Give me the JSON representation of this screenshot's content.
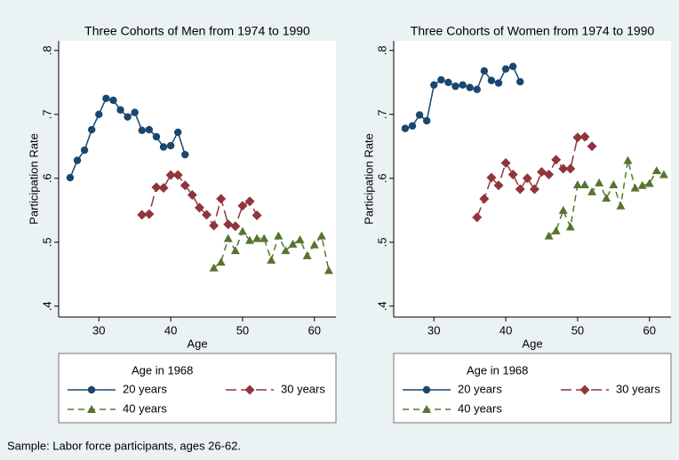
{
  "chart_data": [
    {
      "type": "line",
      "title": "Three Cohorts of Men from 1974 to 1990",
      "x_label": "Age",
      "y_label": "Participation Rate",
      "legend_title": "Age in 1968",
      "xlim": [
        24.4,
        63.0
      ],
      "xticks": [
        30,
        40,
        50,
        60
      ],
      "ylim": [
        0.383,
        0.815
      ],
      "yticks": [
        {
          "value": 0.4,
          "label": ".4"
        },
        {
          "value": 0.5,
          "label": ".5"
        },
        {
          "value": 0.6,
          "label": ".6"
        },
        {
          "value": 0.7,
          "label": ".7"
        },
        {
          "value": 0.8,
          "label": ".8"
        }
      ],
      "grid": false,
      "series": [
        {
          "name": "20 years",
          "color": "#1a476f",
          "marker": "circle",
          "dash": "solid",
          "x": [
            26,
            27,
            28,
            29,
            30,
            31,
            32,
            33,
            34,
            35,
            36,
            37,
            38,
            39,
            40,
            41,
            42
          ],
          "values": [
            0.601,
            0.628,
            0.644,
            0.676,
            0.7,
            0.725,
            0.722,
            0.707,
            0.696,
            0.703,
            0.675,
            0.676,
            0.665,
            0.649,
            0.651,
            0.672,
            0.637
          ]
        },
        {
          "name": "30 years",
          "color": "#90353b",
          "marker": "diamond",
          "dash": "long",
          "x": [
            36,
            37,
            38,
            39,
            40,
            41,
            42,
            43,
            44,
            45,
            46,
            47,
            48,
            49,
            50,
            51,
            52
          ],
          "values": [
            0.543,
            0.544,
            0.586,
            0.585,
            0.605,
            0.605,
            0.589,
            0.574,
            0.554,
            0.543,
            0.526,
            0.568,
            0.528,
            0.525,
            0.557,
            0.564,
            0.542
          ]
        },
        {
          "name": "40 years",
          "color": "#55752f",
          "marker": "triangle",
          "dash": "medium",
          "x": [
            46,
            47,
            48,
            49,
            50,
            51,
            52,
            53,
            54,
            55,
            56,
            57,
            58,
            59,
            60,
            61,
            62
          ],
          "values": [
            0.46,
            0.469,
            0.506,
            0.487,
            0.517,
            0.503,
            0.506,
            0.506,
            0.472,
            0.51,
            0.487,
            0.497,
            0.504,
            0.479,
            0.496,
            0.51,
            0.456
          ]
        }
      ]
    },
    {
      "type": "line",
      "title": "Three Cohorts of Women from 1974 to 1990",
      "x_label": "Age",
      "y_label": "Participation Rate",
      "legend_title": "Age in 1968",
      "xlim": [
        24.4,
        63.0
      ],
      "xticks": [
        30,
        40,
        50,
        60
      ],
      "ylim": [
        0.383,
        0.815
      ],
      "yticks": [
        {
          "value": 0.4,
          "label": ".4"
        },
        {
          "value": 0.5,
          "label": ".5"
        },
        {
          "value": 0.6,
          "label": ".6"
        },
        {
          "value": 0.7,
          "label": ".7"
        },
        {
          "value": 0.8,
          "label": ".8"
        }
      ],
      "grid": false,
      "series": [
        {
          "name": "20 years",
          "color": "#1a476f",
          "marker": "circle",
          "dash": "solid",
          "x": [
            26,
            27,
            28,
            29,
            30,
            31,
            32,
            33,
            34,
            35,
            36,
            37,
            38,
            39,
            40,
            41,
            42
          ],
          "values": [
            0.678,
            0.682,
            0.699,
            0.69,
            0.746,
            0.754,
            0.75,
            0.744,
            0.746,
            0.742,
            0.739,
            0.768,
            0.753,
            0.749,
            0.771,
            0.775,
            0.751
          ]
        },
        {
          "name": "30 years",
          "color": "#90353b",
          "marker": "diamond",
          "dash": "long",
          "x": [
            36,
            37,
            38,
            39,
            40,
            41,
            42,
            43,
            44,
            45,
            46,
            47,
            48,
            49,
            50,
            51,
            52
          ],
          "values": [
            0.539,
            0.568,
            0.601,
            0.589,
            0.624,
            0.606,
            0.583,
            0.6,
            0.583,
            0.61,
            0.606,
            0.629,
            0.615,
            0.615,
            0.664,
            0.665,
            0.65
          ]
        },
        {
          "name": "40 years",
          "color": "#55752f",
          "marker": "triangle",
          "dash": "medium",
          "x": [
            46,
            47,
            48,
            49,
            50,
            51,
            52,
            53,
            54,
            55,
            56,
            57,
            58,
            59,
            60,
            61,
            62
          ],
          "values": [
            0.51,
            0.518,
            0.55,
            0.524,
            0.59,
            0.59,
            0.579,
            0.593,
            0.569,
            0.59,
            0.557,
            0.628,
            0.585,
            0.589,
            0.592,
            0.612,
            0.606
          ]
        }
      ]
    }
  ],
  "note": "Sample: Labor force participants, ages 26-62."
}
